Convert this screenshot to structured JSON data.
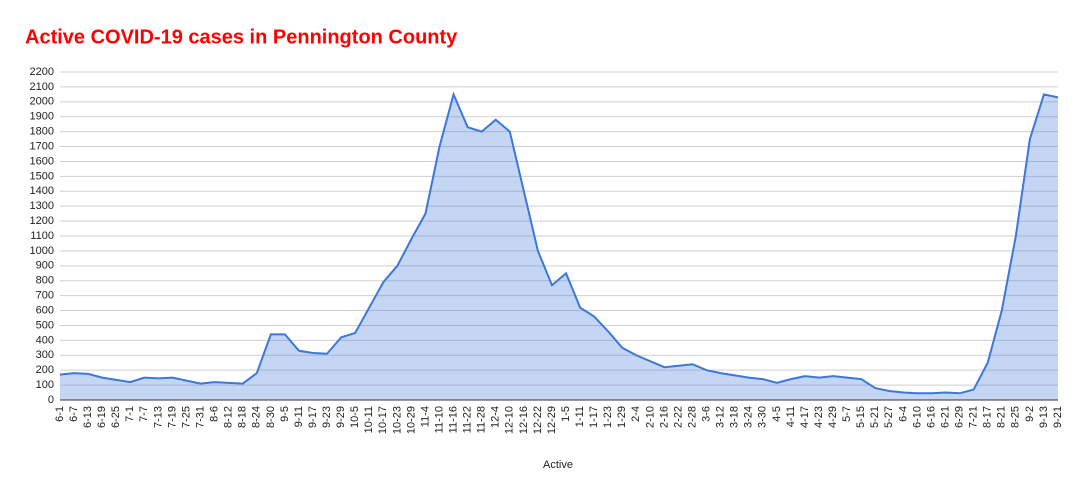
{
  "chart_data": {
    "type": "area",
    "title": "Active COVID-19 cases in Pennington County",
    "x_label": "Active",
    "categories": [
      "6-1",
      "6-7",
      "6-13",
      "6-19",
      "6-25",
      "7-1",
      "7-7",
      "7-13",
      "7-19",
      "7-25",
      "7-31",
      "8-6",
      "8-12",
      "8-18",
      "8-24",
      "8-30",
      "9-5",
      "9-11",
      "9-17",
      "9-23",
      "9-29",
      "10-5",
      "10-11",
      "10-17",
      "10-23",
      "10-29",
      "11-4",
      "11-10",
      "11-16",
      "11-22",
      "11-28",
      "12-4",
      "12-10",
      "12-16",
      "12-22",
      "12-29",
      "1-5",
      "1-11",
      "1-17",
      "1-23",
      "1-29",
      "2-4",
      "2-10",
      "2-16",
      "2-22",
      "2-28",
      "3-6",
      "3-12",
      "3-18",
      "3-24",
      "3-30",
      "4-5",
      "4-11",
      "4-17",
      "4-23",
      "4-29",
      "5-7",
      "5-15",
      "5-21",
      "5-27",
      "6-4",
      "6-10",
      "6-16",
      "6-21",
      "6-29",
      "7-21",
      "8-17",
      "8-21",
      "8-25",
      "9-2",
      "9-13",
      "9-21"
    ],
    "series": [
      {
        "name": "Active",
        "color": "#3c78d8",
        "values": [
          170,
          180,
          175,
          150,
          135,
          120,
          150,
          145,
          150,
          130,
          110,
          120,
          115,
          110,
          180,
          440,
          440,
          330,
          315,
          310,
          420,
          450,
          620,
          790,
          900,
          1080,
          1250,
          1700,
          2050,
          1830,
          1800,
          1880,
          1800,
          1400,
          1000,
          770,
          850,
          620,
          560,
          460,
          350,
          300,
          260,
          220,
          230,
          240,
          200,
          180,
          165,
          150,
          140,
          115,
          140,
          160,
          150,
          160,
          150,
          140,
          80,
          60,
          50,
          45,
          45,
          50,
          45,
          70,
          250,
          600,
          1100,
          1750,
          2050,
          2030
        ]
      }
    ],
    "ylim": [
      0,
      2200
    ],
    "yticks": [
      0,
      100,
      200,
      300,
      400,
      500,
      600,
      700,
      800,
      900,
      1000,
      1100,
      1200,
      1300,
      1400,
      1500,
      1600,
      1700,
      1800,
      1900,
      2000,
      2100,
      2200
    ],
    "grid": true
  }
}
